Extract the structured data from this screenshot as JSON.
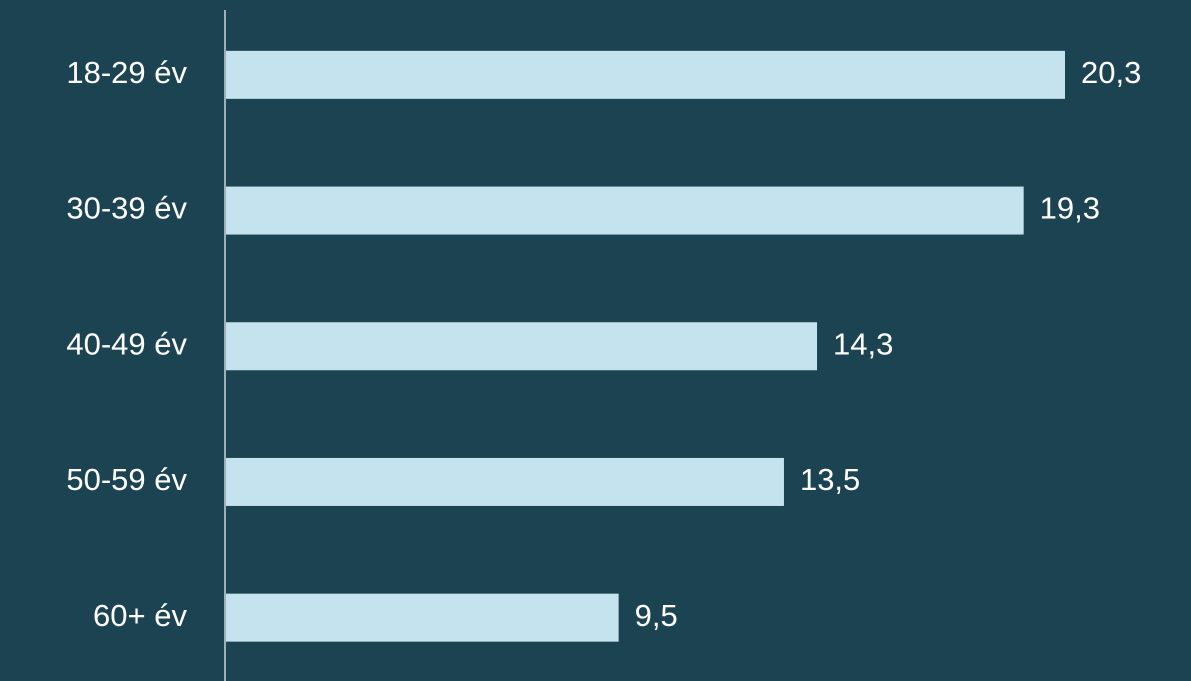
{
  "chart_data": {
    "type": "bar",
    "orientation": "horizontal",
    "categories": [
      "18-29 év",
      "30-39 év",
      "40-49 év",
      "50-59 év",
      "60+ év"
    ],
    "values": [
      20.3,
      19.3,
      14.3,
      13.5,
      9.5
    ],
    "value_labels": [
      "20,3",
      "19,3",
      "14,3",
      "13,5",
      "9,5"
    ],
    "color": "#c5e3ee"
  }
}
